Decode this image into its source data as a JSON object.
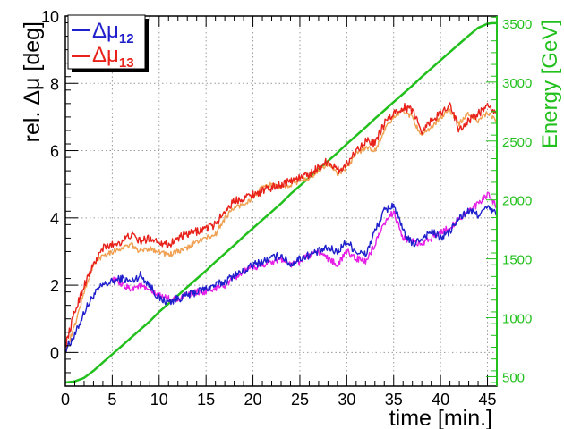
{
  "chart_data": {
    "type": "line",
    "xlabel": "time [min.]",
    "ylabel": "rel. Δμ [deg]",
    "y2label": "Energy [GeV]",
    "xlim": [
      0,
      46
    ],
    "ylim": [
      -1,
      10
    ],
    "y2lim": [
      420,
      3560
    ],
    "xticks": [
      0,
      5,
      10,
      15,
      20,
      25,
      30,
      35,
      40,
      45
    ],
    "yticks": [
      0,
      2,
      4,
      6,
      8,
      10
    ],
    "y2ticks": [
      500,
      1000,
      1500,
      2000,
      2500,
      3000,
      3500
    ],
    "grid": true,
    "legend": {
      "position": "top-left",
      "entries": [
        {
          "base": "Δμ",
          "sub": "12",
          "color": "#1f1fcc"
        },
        {
          "base": "Δμ",
          "sub": "13",
          "color": "#e8221a"
        }
      ]
    },
    "series": [
      {
        "name": "Δμ12",
        "color": "#1f1fcc",
        "axis": "left",
        "noise": 0.12,
        "x": [
          0,
          1,
          2,
          3,
          4,
          5,
          6,
          7,
          8,
          9,
          10,
          11,
          12,
          13,
          14,
          15,
          16,
          17,
          18,
          19,
          20,
          21,
          22,
          23,
          24,
          25,
          26,
          27,
          28,
          29,
          30,
          31,
          32,
          33,
          34,
          35,
          36,
          37,
          38,
          39,
          40,
          41,
          42,
          43,
          44,
          45,
          46
        ],
        "y": [
          0.1,
          0.5,
          1.2,
          1.7,
          2.0,
          2.1,
          2.2,
          2.1,
          2.3,
          2.0,
          1.6,
          1.5,
          1.6,
          1.7,
          1.8,
          1.9,
          2.0,
          2.1,
          2.3,
          2.4,
          2.6,
          2.7,
          2.8,
          2.9,
          2.6,
          2.8,
          2.9,
          3.0,
          3.1,
          3.0,
          3.3,
          3.0,
          2.9,
          3.6,
          4.2,
          4.4,
          3.6,
          3.2,
          3.4,
          3.6,
          3.4,
          3.6,
          4.0,
          4.2,
          4.1,
          4.3,
          4.1
        ]
      },
      {
        "name": "Δμ13",
        "color": "#e8221a",
        "axis": "left",
        "noise": 0.12,
        "x": [
          0,
          1,
          2,
          3,
          4,
          5,
          6,
          7,
          8,
          9,
          10,
          11,
          12,
          13,
          14,
          15,
          16,
          17,
          18,
          19,
          20,
          21,
          22,
          23,
          24,
          25,
          26,
          27,
          28,
          29,
          30,
          31,
          32,
          33,
          34,
          35,
          36,
          37,
          38,
          39,
          40,
          41,
          42,
          43,
          44,
          45,
          46
        ],
        "y": [
          0.2,
          1.2,
          2.0,
          2.6,
          3.1,
          3.2,
          3.3,
          3.5,
          3.3,
          3.4,
          3.3,
          3.2,
          3.4,
          3.5,
          3.6,
          3.7,
          3.8,
          4.2,
          4.5,
          4.6,
          4.7,
          4.8,
          4.9,
          5.0,
          5.1,
          5.2,
          5.3,
          5.5,
          5.7,
          5.4,
          5.6,
          6.0,
          6.3,
          6.2,
          6.8,
          7.1,
          7.3,
          7.2,
          6.6,
          6.9,
          7.1,
          7.4,
          6.6,
          6.9,
          7.1,
          7.3,
          7.1
        ]
      },
      {
        "name": "",
        "color": "#f0a050",
        "axis": "left",
        "noise": 0.08,
        "x": [
          0,
          1,
          2,
          3,
          4,
          5,
          6,
          7,
          8,
          9,
          10,
          11,
          12,
          13,
          14,
          15,
          16,
          17,
          18,
          19,
          20,
          21,
          22,
          23,
          24,
          25,
          26,
          27,
          28,
          29,
          30,
          31,
          32,
          33,
          34,
          35,
          36,
          37,
          38,
          39,
          40,
          41,
          42,
          43,
          44,
          45,
          46
        ],
        "y": [
          0.0,
          0.8,
          1.8,
          2.6,
          2.9,
          3.0,
          3.1,
          3.2,
          3.0,
          3.1,
          3.0,
          2.9,
          3.0,
          3.1,
          3.3,
          3.4,
          3.5,
          4.0,
          4.3,
          4.4,
          4.6,
          4.9,
          5.0,
          4.9,
          5.0,
          5.1,
          5.2,
          5.4,
          5.6,
          5.3,
          5.5,
          5.9,
          6.1,
          6.0,
          6.6,
          7.0,
          7.2,
          7.0,
          6.4,
          6.7,
          7.0,
          7.2,
          6.8,
          7.1,
          6.9,
          7.1,
          6.9
        ]
      },
      {
        "name": "",
        "color": "#e61ee6",
        "axis": "left",
        "noise": 0.1,
        "x": [
          5,
          6,
          7,
          8,
          9,
          10,
          11,
          12,
          13,
          14,
          15,
          16,
          17,
          18,
          19,
          20,
          21,
          22,
          23,
          24,
          25,
          26,
          27,
          28,
          29,
          30,
          31,
          32,
          33,
          34,
          35,
          36,
          37,
          38,
          39,
          40,
          41,
          42,
          43,
          44,
          45,
          46
        ],
        "y": [
          2.2,
          2.0,
          1.9,
          2.0,
          1.8,
          1.7,
          1.6,
          1.6,
          1.7,
          1.8,
          1.8,
          1.9,
          2.0,
          2.2,
          2.4,
          2.5,
          2.6,
          2.7,
          2.8,
          2.6,
          2.7,
          2.9,
          3.0,
          2.8,
          2.6,
          3.0,
          2.8,
          2.7,
          3.2,
          3.8,
          4.2,
          3.4,
          3.3,
          3.2,
          3.4,
          3.6,
          3.7,
          4.0,
          4.2,
          4.4,
          4.7,
          4.3
        ]
      },
      {
        "name": "",
        "color": "#22c01c",
        "axis": "right",
        "noise": 0,
        "x": [
          0,
          1,
          2,
          3,
          4,
          5,
          6,
          7,
          8,
          9,
          10,
          11,
          12,
          13,
          14,
          15,
          16,
          17,
          18,
          19,
          20,
          21,
          22,
          23,
          24,
          25,
          26,
          27,
          28,
          29,
          30,
          31,
          32,
          33,
          34,
          35,
          36,
          37,
          38,
          39,
          40,
          41,
          42,
          43,
          44,
          45,
          45.5,
          46
        ],
        "y": [
          450,
          460,
          490,
          550,
          620,
          690,
          760,
          830,
          900,
          970,
          1050,
          1120,
          1190,
          1260,
          1330,
          1400,
          1475,
          1545,
          1615,
          1690,
          1760,
          1830,
          1900,
          1970,
          2050,
          2120,
          2190,
          2260,
          2330,
          2400,
          2475,
          2545,
          2615,
          2690,
          2760,
          2830,
          2900,
          2970,
          3045,
          3115,
          3185,
          3255,
          3325,
          3395,
          3460,
          3495,
          3500,
          3500
        ]
      }
    ]
  }
}
